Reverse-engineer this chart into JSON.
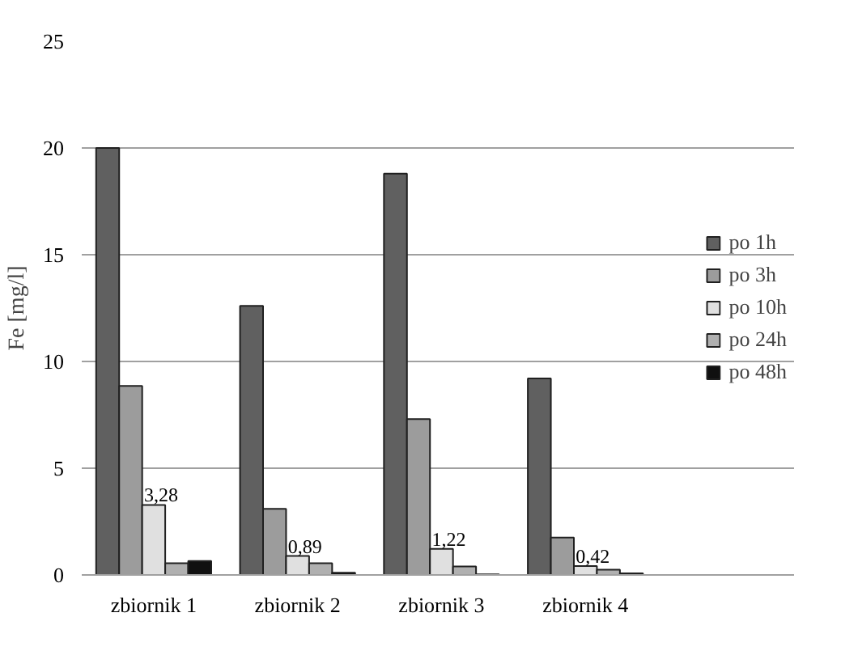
{
  "chart_data": {
    "type": "bar",
    "ylabel": "Fe [mg/l]",
    "categories": [
      "zbiornik 1",
      "zbiornik 2",
      "zbiornik 3",
      "zbiornik 4"
    ],
    "series": [
      {
        "name": "po 1h",
        "color": "#606060",
        "values": [
          20,
          12.6,
          18.8,
          9.2
        ]
      },
      {
        "name": "po 3h",
        "color": "#9c9c9c",
        "values": [
          8.85,
          3.1,
          7.3,
          1.75
        ]
      },
      {
        "name": "po 10h",
        "color": "#e0e0e0",
        "values": [
          3.28,
          0.89,
          1.22,
          0.42
        ],
        "value_labels": [
          "3,28",
          "0,89",
          "1,22",
          "0,42"
        ]
      },
      {
        "name": "po 24h",
        "color": "#b0b0b0",
        "values": [
          0.55,
          0.55,
          0.4,
          0.25
        ]
      },
      {
        "name": "po 48h",
        "color": "#101010",
        "values": [
          0.65,
          0.1,
          0.03,
          0.08
        ]
      }
    ],
    "ylim": [
      0,
      25
    ],
    "yticks": [
      0,
      5,
      10,
      15,
      20,
      25
    ],
    "grid": "y",
    "legend": "right"
  }
}
